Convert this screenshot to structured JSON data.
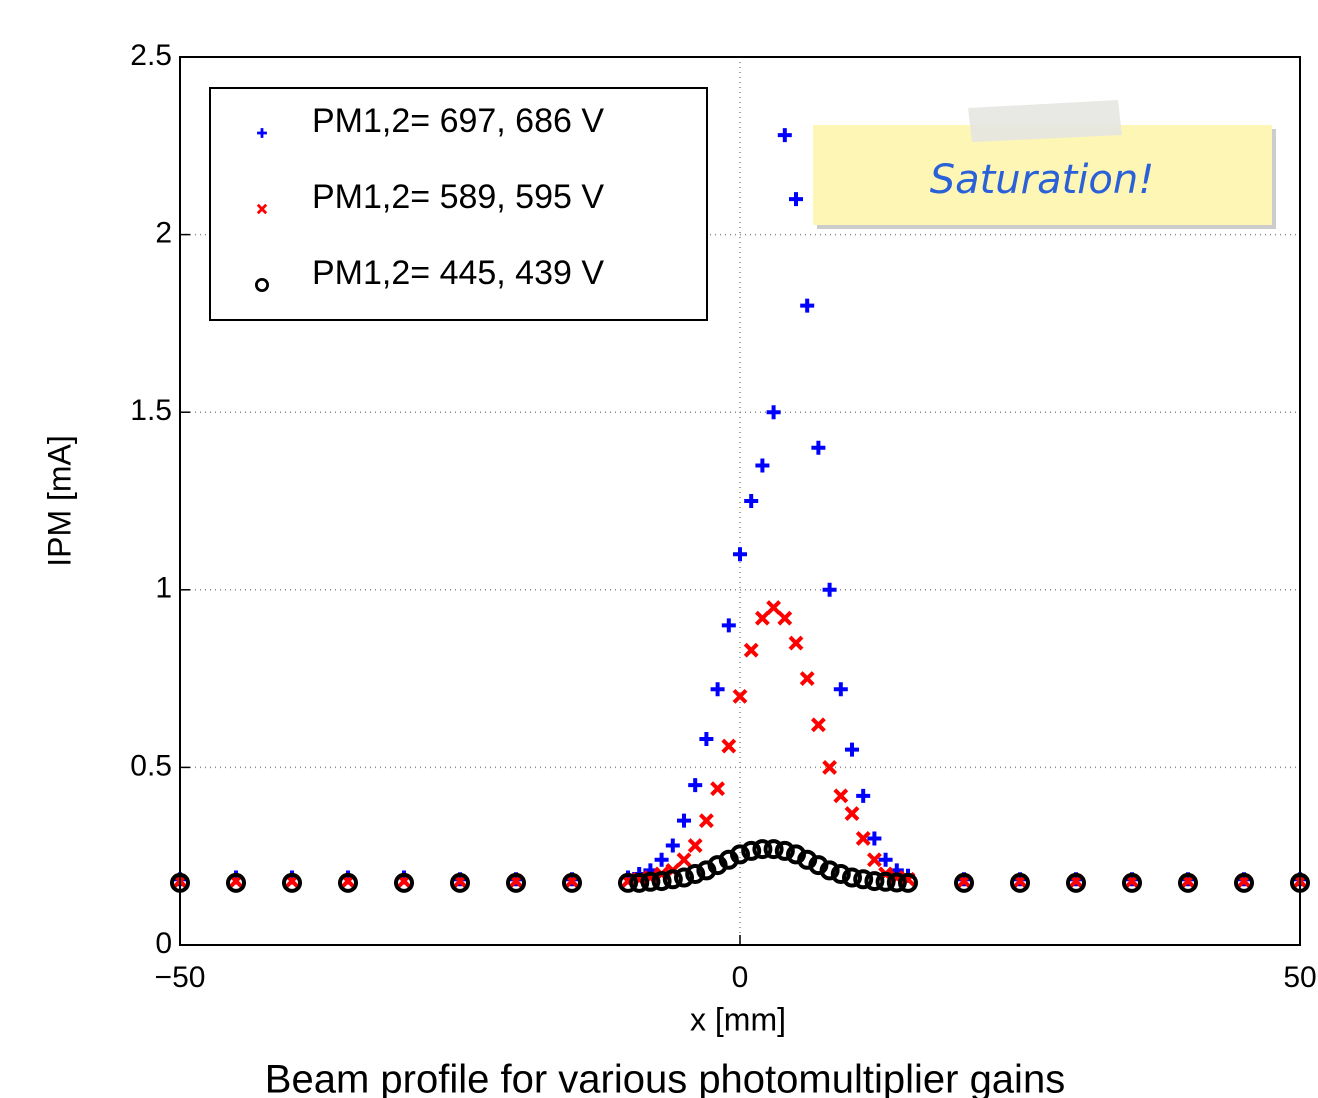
{
  "chart_data": {
    "type": "scatter",
    "x_label": "x [mm]",
    "y_label": "IPM [mA]",
    "caption": "Beam profile for various photomultiplier gains",
    "annotation": "Saturation!",
    "xlim": [
      -50,
      50
    ],
    "xticks": [
      {
        "value": -50,
        "label": "−50"
      },
      0,
      50
    ],
    "ylim": [
      0,
      2.5
    ],
    "yticks": [
      0,
      0.5,
      1,
      1.5,
      2,
      2.5
    ],
    "grid": true,
    "legend": "upper left",
    "x": [
      -50,
      -45,
      -40,
      -35,
      -30,
      -25,
      -20,
      -15,
      -10,
      -9,
      -8,
      -7,
      -6,
      -5,
      -4,
      -3,
      -2,
      -1,
      0,
      1,
      2,
      3,
      4,
      5,
      6,
      7,
      8,
      9,
      10,
      11,
      12,
      13,
      14,
      15,
      20,
      25,
      30,
      35,
      40,
      45,
      50
    ],
    "series": [
      {
        "name": "PM1,2= 697, 686 V",
        "color": "#0000ff",
        "marker": "plus",
        "values": [
          0.185,
          0.19,
          0.19,
          0.19,
          0.19,
          0.185,
          0.185,
          0.185,
          0.19,
          0.2,
          0.21,
          0.24,
          0.28,
          0.35,
          0.45,
          0.58,
          0.72,
          0.9,
          1.1,
          1.25,
          1.35,
          1.5,
          2.28,
          2.1,
          1.8,
          1.4,
          1.0,
          0.72,
          0.55,
          0.42,
          0.3,
          0.24,
          0.21,
          0.195,
          0.185,
          0.185,
          0.185,
          0.185,
          0.185,
          0.185,
          0.185
        ]
      },
      {
        "name": "PM1,2= 589, 595 V",
        "color": "#ff0000",
        "marker": "x",
        "values": [
          0.18,
          0.18,
          0.18,
          0.18,
          0.18,
          0.18,
          0.18,
          0.18,
          0.18,
          0.185,
          0.19,
          0.2,
          0.21,
          0.24,
          0.28,
          0.35,
          0.44,
          0.56,
          0.7,
          0.83,
          0.92,
          0.95,
          0.92,
          0.85,
          0.75,
          0.62,
          0.5,
          0.42,
          0.37,
          0.3,
          0.24,
          0.2,
          0.19,
          0.185,
          0.18,
          0.18,
          0.18,
          0.18,
          0.18,
          0.18,
          0.18
        ]
      },
      {
        "name": "PM1,2= 445, 439 V",
        "color": "#000000",
        "marker": "circle",
        "values": [
          0.175,
          0.175,
          0.175,
          0.175,
          0.175,
          0.175,
          0.175,
          0.175,
          0.175,
          0.175,
          0.178,
          0.18,
          0.185,
          0.19,
          0.2,
          0.21,
          0.225,
          0.24,
          0.255,
          0.265,
          0.27,
          0.27,
          0.265,
          0.255,
          0.24,
          0.225,
          0.21,
          0.2,
          0.19,
          0.185,
          0.18,
          0.178,
          0.176,
          0.175,
          0.175,
          0.175,
          0.175,
          0.175,
          0.175,
          0.175,
          0.175
        ]
      }
    ]
  }
}
